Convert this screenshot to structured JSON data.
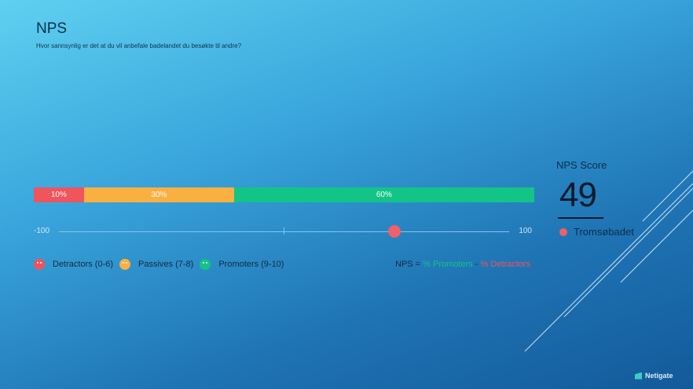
{
  "title": "NPS",
  "subtitle": "Hvor sannsynlig er det at du vil anbefale badelandet du besøkte til andre?",
  "chart_data": {
    "type": "bar",
    "categories": [
      "Detractors (0-6)",
      "Passives (7-8)",
      "Promoters (9-10)"
    ],
    "values": [
      10,
      30,
      60
    ],
    "labels": [
      "10%",
      "30%",
      "60%"
    ],
    "colors": [
      "#f0545c",
      "#f9b040",
      "#12c586"
    ],
    "scale": {
      "min_label": "-100",
      "max_label": "100",
      "min": -100,
      "max": 100,
      "marker_value": 49,
      "marker_color": "#f0606a"
    }
  },
  "legend": [
    {
      "label": "Detractors (0-6)",
      "color": "#f0545c",
      "icon": "sad-face-icon"
    },
    {
      "label": "Passives (7-8)",
      "color": "#f9b040",
      "icon": "neutral-face-icon"
    },
    {
      "label": "Promoters (9-10)",
      "color": "#12c586",
      "icon": "happy-face-icon"
    }
  ],
  "formula": {
    "prefix": "NPS = ",
    "promoters": "% Promoters",
    "sep": " - ",
    "detractors": "% Detractors"
  },
  "score": {
    "label": "NPS Score",
    "value": "49",
    "name": "Tromsøbadet"
  },
  "logo": "Netigate"
}
